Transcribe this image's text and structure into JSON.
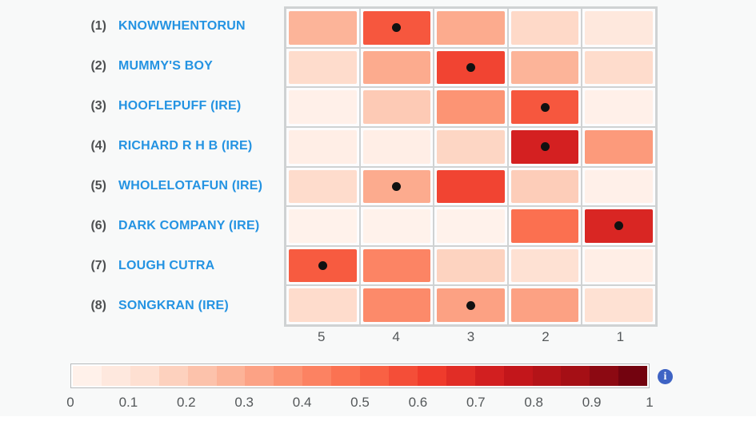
{
  "page": {
    "background": "#f8f9f9",
    "bottom_strip_color": "#ffffff"
  },
  "colors": {
    "horse_name_blue": "#2493e2",
    "saddle_number_gray": "#4d4f51",
    "axis_label_gray": "#54585a",
    "grid_line": "#cfd2d3",
    "cell_background": "#fcfcfd",
    "dot_black": "#111111",
    "colorbar_border": "#b6babc",
    "info_icon_blue": "#3e63c4"
  },
  "info_icon": {
    "glyph": "i"
  },
  "chart_data": {
    "type": "heatmap",
    "x_tick_labels": [
      "5",
      "4",
      "3",
      "2",
      "1"
    ],
    "rows": [
      {
        "saddle_number": "(1)",
        "name": "KNOWWHENTORUN",
        "values": [
          0.27,
          0.55,
          0.3,
          0.15,
          0.08
        ],
        "dot_column_label": "4"
      },
      {
        "saddle_number": "(2)",
        "name": "MUMMY'S BOY",
        "values": [
          0.14,
          0.3,
          0.6,
          0.27,
          0.14
        ],
        "dot_column_label": "3"
      },
      {
        "saddle_number": "(3)",
        "name": "HOOFLEPUFF (IRE)",
        "values": [
          0.03,
          0.2,
          0.37,
          0.55,
          0.03
        ],
        "dot_column_label": "2"
      },
      {
        "saddle_number": "(4)",
        "name": "RICHARD R H B (IRE)",
        "values": [
          0.04,
          0.04,
          0.16,
          0.72,
          0.35
        ],
        "dot_column_label": "2"
      },
      {
        "saddle_number": "(5)",
        "name": "WHOLELOTAFUN (IRE)",
        "values": [
          0.14,
          0.3,
          0.6,
          0.19,
          0.03
        ],
        "dot_column_label": "4"
      },
      {
        "saddle_number": "(6)",
        "name": "DARK COMPANY (IRE)",
        "values": [
          0.02,
          0.02,
          0.02,
          0.48,
          0.7
        ],
        "dot_column_label": "1"
      },
      {
        "saddle_number": "(7)",
        "name": "LOUGH CUTRA",
        "values": [
          0.54,
          0.42,
          0.17,
          0.12,
          0.04
        ],
        "dot_column_label": "5"
      },
      {
        "saddle_number": "(8)",
        "name": "SONGKRAN (IRE)",
        "values": [
          0.14,
          0.4,
          0.33,
          0.33,
          0.12
        ],
        "dot_column_label": "3"
      }
    ],
    "dot_marker": "black-dot",
    "colorbar": {
      "range": [
        0,
        1
      ],
      "segments": 20,
      "tick_labels": [
        "0",
        "0.1",
        "0.2",
        "0.3",
        "0.4",
        "0.5",
        "0.6",
        "0.7",
        "0.8",
        "0.9",
        "1"
      ]
    },
    "colormap_stops": [
      [
        0.0,
        "#fff5f0"
      ],
      [
        0.125,
        "#fee0d2"
      ],
      [
        0.25,
        "#fcbba1"
      ],
      [
        0.375,
        "#fc9272"
      ],
      [
        0.5,
        "#fb6a4a"
      ],
      [
        0.625,
        "#ef3b2c"
      ],
      [
        0.75,
        "#cb181d"
      ],
      [
        0.875,
        "#a50f15"
      ],
      [
        1.0,
        "#67000d"
      ]
    ]
  }
}
